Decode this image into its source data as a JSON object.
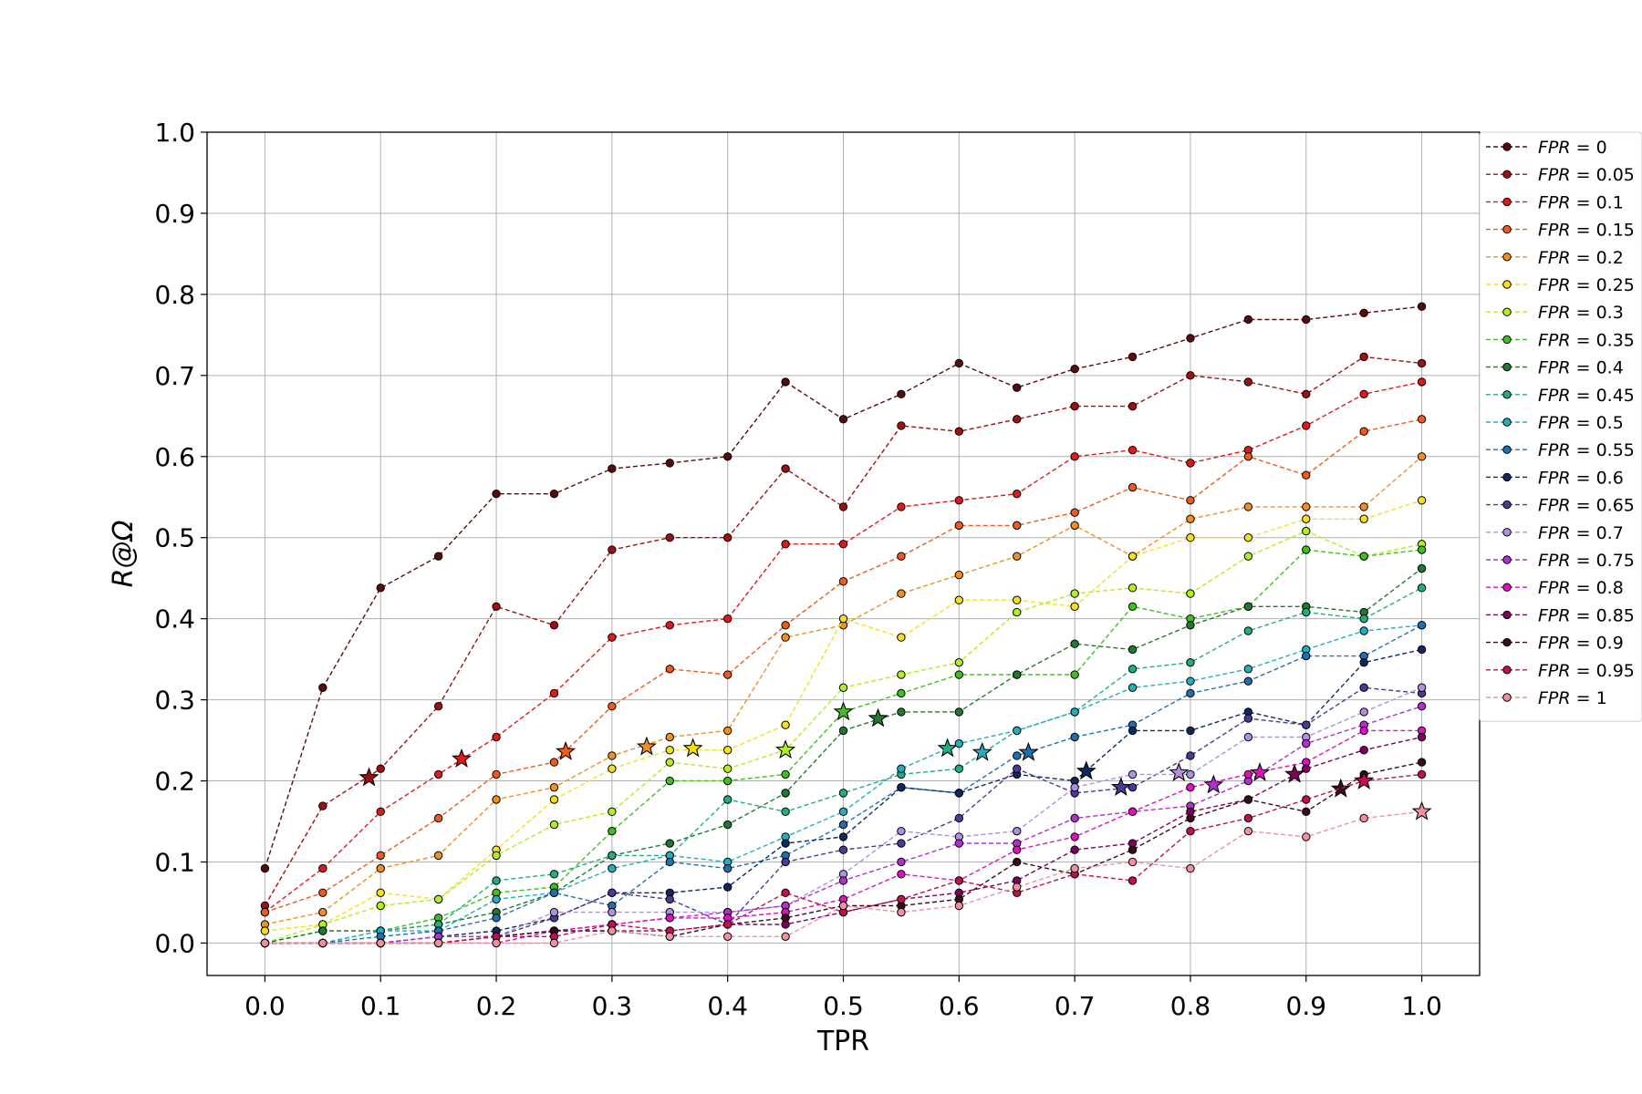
{
  "chart_data": {
    "type": "line",
    "xlabel": "TPR",
    "ylabel": "R@Ω",
    "xlim": [
      -0.05,
      1.05
    ],
    "ylim": [
      -0.04,
      1.0
    ],
    "xticks": [
      "0.0",
      "0.1",
      "0.2",
      "0.3",
      "0.4",
      "0.5",
      "0.6",
      "0.7",
      "0.8",
      "0.9",
      "1.0"
    ],
    "yticks": [
      "0.0",
      "0.1",
      "0.2",
      "0.3",
      "0.4",
      "0.5",
      "0.6",
      "0.7",
      "0.8",
      "0.9",
      "1.0"
    ],
    "grid": true,
    "legend_position": "outside-right",
    "x": [
      0,
      0.05,
      0.1,
      0.15,
      0.2,
      0.25,
      0.3,
      0.35,
      0.4,
      0.45,
      0.5,
      0.55,
      0.6,
      0.65,
      0.7,
      0.75,
      0.8,
      0.85,
      0.9,
      0.95,
      1.0
    ],
    "series": [
      {
        "name": "FPR = 0",
        "fpr": "0",
        "color": "#5a0a0a",
        "values": [
          0.092,
          0.315,
          0.438,
          0.477,
          0.554,
          0.554,
          0.585,
          0.592,
          0.6,
          0.692,
          0.646,
          0.677,
          0.715,
          0.685,
          0.708,
          0.723,
          0.746,
          0.769,
          0.769,
          0.777,
          0.785
        ],
        "star": null
      },
      {
        "name": "FPR = 0.05",
        "fpr": "0.05",
        "color": "#a01010",
        "values": [
          0.046,
          0.169,
          0.215,
          0.292,
          0.415,
          0.392,
          0.485,
          0.5,
          0.5,
          0.585,
          0.538,
          0.638,
          0.631,
          0.646,
          0.662,
          0.662,
          0.7,
          0.692,
          0.677,
          0.723,
          0.715
        ],
        "star": [
          0.09,
          0.204
        ]
      },
      {
        "name": "FPR = 0.1",
        "fpr": "0.1",
        "color": "#e01a1a",
        "values": [
          0.038,
          0.092,
          0.162,
          0.208,
          0.254,
          0.308,
          0.377,
          0.392,
          0.4,
          0.492,
          0.492,
          0.538,
          0.546,
          0.554,
          0.6,
          0.608,
          0.592,
          0.608,
          0.638,
          0.677,
          0.692
        ],
        "star": [
          0.17,
          0.227
        ]
      },
      {
        "name": "FPR = 0.15",
        "fpr": "0.15",
        "color": "#f05a1a",
        "values": [
          0.038,
          0.062,
          0.108,
          0.154,
          0.208,
          0.223,
          0.292,
          0.338,
          0.331,
          0.392,
          0.446,
          0.477,
          0.515,
          0.515,
          0.531,
          0.562,
          0.546,
          0.6,
          0.577,
          0.631,
          0.646
        ],
        "star": [
          0.26,
          0.236
        ]
      },
      {
        "name": "FPR = 0.2",
        "fpr": "0.2",
        "color": "#f09020",
        "values": [
          0.023,
          0.038,
          0.092,
          0.108,
          0.177,
          0.192,
          0.231,
          0.254,
          0.262,
          0.377,
          0.392,
          0.431,
          0.454,
          0.477,
          0.515,
          0.477,
          0.523,
          0.538,
          0.538,
          0.538,
          0.6
        ],
        "star": [
          0.33,
          0.242
        ]
      },
      {
        "name": "FPR = 0.25",
        "fpr": "0.25",
        "color": "#f5e020",
        "values": [
          0.015,
          0.023,
          0.062,
          0.054,
          0.115,
          0.177,
          0.215,
          0.238,
          0.238,
          0.269,
          0.4,
          0.377,
          0.423,
          0.423,
          0.415,
          0.477,
          0.5,
          0.5,
          0.523,
          0.523,
          0.546
        ],
        "star": [
          0.37,
          0.24
        ]
      },
      {
        "name": "FPR = 0.3",
        "fpr": "0.3",
        "color": "#b0f020",
        "values": [
          0.0,
          0.023,
          0.046,
          0.054,
          0.108,
          0.146,
          0.162,
          0.223,
          0.215,
          0.238,
          0.315,
          0.331,
          0.346,
          0.408,
          0.431,
          0.438,
          0.431,
          0.477,
          0.508,
          0.477,
          0.492
        ],
        "star": [
          0.45,
          0.238
        ]
      },
      {
        "name": "FPR = 0.35",
        "fpr": "0.35",
        "color": "#40c020",
        "values": [
          0.0,
          0.015,
          0.015,
          0.031,
          0.062,
          0.069,
          0.138,
          0.2,
          0.2,
          0.208,
          0.285,
          0.308,
          0.331,
          0.331,
          0.331,
          0.415,
          0.4,
          0.415,
          0.485,
          0.477,
          0.485
        ],
        "star": [
          0.5,
          0.285
        ]
      },
      {
        "name": "FPR = 0.4",
        "fpr": "0.4",
        "color": "#207a30",
        "values": [
          0.0,
          0.015,
          0.015,
          0.023,
          0.038,
          0.062,
          0.108,
          0.123,
          0.146,
          0.185,
          0.262,
          0.285,
          0.285,
          0.331,
          0.369,
          0.362,
          0.392,
          0.415,
          0.415,
          0.408,
          0.462
        ],
        "star": [
          0.53,
          0.277
        ]
      },
      {
        "name": "FPR = 0.45",
        "fpr": "0.45",
        "color": "#20b080",
        "values": [
          0.0,
          0.0,
          0.015,
          0.023,
          0.077,
          0.085,
          0.108,
          0.108,
          0.177,
          0.162,
          0.185,
          0.208,
          0.215,
          0.262,
          0.285,
          0.338,
          0.346,
          0.385,
          0.408,
          0.4,
          0.438
        ],
        "star": [
          0.59,
          0.24
        ]
      },
      {
        "name": "FPR = 0.5",
        "fpr": "0.5",
        "color": "#20b0c0",
        "values": [
          0.0,
          0.0,
          0.015,
          0.015,
          0.054,
          0.062,
          0.092,
          0.108,
          0.1,
          0.131,
          0.162,
          0.215,
          0.246,
          0.262,
          0.285,
          0.315,
          0.323,
          0.338,
          0.362,
          0.385,
          0.392
        ],
        "star": [
          0.62,
          0.235
        ]
      },
      {
        "name": "FPR = 0.55",
        "fpr": "0.55",
        "color": "#2070b0",
        "values": [
          0.0,
          0.0,
          0.008,
          0.015,
          0.031,
          0.062,
          0.046,
          0.1,
          0.092,
          0.108,
          0.146,
          0.192,
          0.185,
          0.231,
          0.254,
          0.269,
          0.308,
          0.323,
          0.354,
          0.354,
          0.392
        ],
        "star": [
          0.66,
          0.235
        ]
      },
      {
        "name": "FPR = 0.6",
        "fpr": "0.6",
        "color": "#102860",
        "values": [
          0.0,
          0.0,
          0.0,
          0.008,
          0.015,
          0.031,
          0.062,
          0.062,
          0.069,
          0.123,
          0.131,
          0.192,
          0.185,
          0.208,
          0.2,
          0.262,
          0.262,
          0.285,
          0.269,
          0.346,
          0.362
        ],
        "star": [
          0.71,
          0.212
        ]
      },
      {
        "name": "FPR = 0.65",
        "fpr": "0.65",
        "color": "#4a3a9a",
        "values": [
          0.0,
          0.0,
          0.0,
          0.008,
          0.008,
          0.031,
          0.062,
          0.054,
          0.023,
          0.1,
          0.115,
          0.123,
          0.154,
          0.215,
          0.185,
          0.192,
          0.231,
          0.277,
          0.269,
          0.315,
          0.308
        ],
        "star": [
          0.74,
          0.192
        ]
      },
      {
        "name": "FPR = 0.7",
        "fpr": "0.7",
        "color": "#b090e0",
        "values": [
          0.0,
          0.0,
          0.0,
          0.008,
          0.008,
          0.038,
          0.038,
          0.038,
          0.038,
          0.046,
          0.085,
          0.138,
          0.131,
          0.138,
          0.192,
          0.208,
          0.208,
          0.254,
          0.254,
          0.285,
          0.315
        ],
        "star": [
          0.79,
          0.21
        ]
      },
      {
        "name": "FPR = 0.75",
        "fpr": "0.75",
        "color": "#b030d0",
        "values": [
          0.0,
          0.0,
          0.0,
          0.008,
          0.008,
          0.015,
          0.023,
          0.031,
          0.038,
          0.046,
          0.077,
          0.1,
          0.123,
          0.123,
          0.154,
          0.162,
          0.169,
          0.2,
          0.246,
          0.269,
          0.292
        ],
        "star": [
          0.82,
          0.195
        ]
      },
      {
        "name": "FPR = 0.8",
        "fpr": "0.8",
        "color": "#e010c0",
        "values": [
          0.0,
          0.0,
          0.0,
          0.0,
          0.0,
          0.015,
          0.023,
          0.031,
          0.031,
          0.038,
          0.054,
          0.085,
          0.077,
          0.115,
          0.131,
          0.162,
          0.192,
          0.208,
          0.223,
          0.262,
          0.262
        ],
        "star": [
          0.86,
          0.21
        ]
      },
      {
        "name": "FPR = 0.85",
        "fpr": "0.85",
        "color": "#800060",
        "values": [
          0.0,
          0.0,
          0.0,
          0.0,
          0.008,
          0.015,
          0.015,
          0.015,
          0.023,
          0.023,
          0.038,
          0.054,
          0.062,
          0.077,
          0.115,
          0.123,
          0.162,
          0.177,
          0.215,
          0.238,
          0.254
        ],
        "star": [
          0.89,
          0.208
        ]
      },
      {
        "name": "FPR = 0.9",
        "fpr": "0.9",
        "color": "#3a0a20",
        "values": [
          0.0,
          0.0,
          0.0,
          0.0,
          0.008,
          0.015,
          0.015,
          0.008,
          0.023,
          0.031,
          0.046,
          0.046,
          0.054,
          0.1,
          0.085,
          0.115,
          0.154,
          0.177,
          0.162,
          0.208,
          0.223
        ],
        "star": [
          0.93,
          0.19
        ]
      },
      {
        "name": "FPR = 0.95",
        "fpr": "0.95",
        "color": "#c01050",
        "values": [
          0.0,
          0.0,
          0.0,
          0.0,
          0.008,
          0.008,
          0.023,
          0.015,
          0.023,
          0.062,
          0.038,
          0.054,
          0.077,
          0.062,
          0.085,
          0.077,
          0.138,
          0.154,
          0.177,
          0.2,
          0.208
        ],
        "star": [
          0.95,
          0.2
        ]
      },
      {
        "name": "FPR = 1",
        "fpr": "1",
        "color": "#f090a0",
        "values": [
          0.0,
          0.0,
          0.0,
          0.0,
          0.0,
          0.0,
          0.015,
          0.008,
          0.008,
          0.008,
          0.046,
          0.038,
          0.046,
          0.069,
          0.092,
          0.1,
          0.092,
          0.138,
          0.131,
          0.154,
          0.162
        ],
        "star": [
          1.0,
          0.162
        ]
      }
    ]
  }
}
